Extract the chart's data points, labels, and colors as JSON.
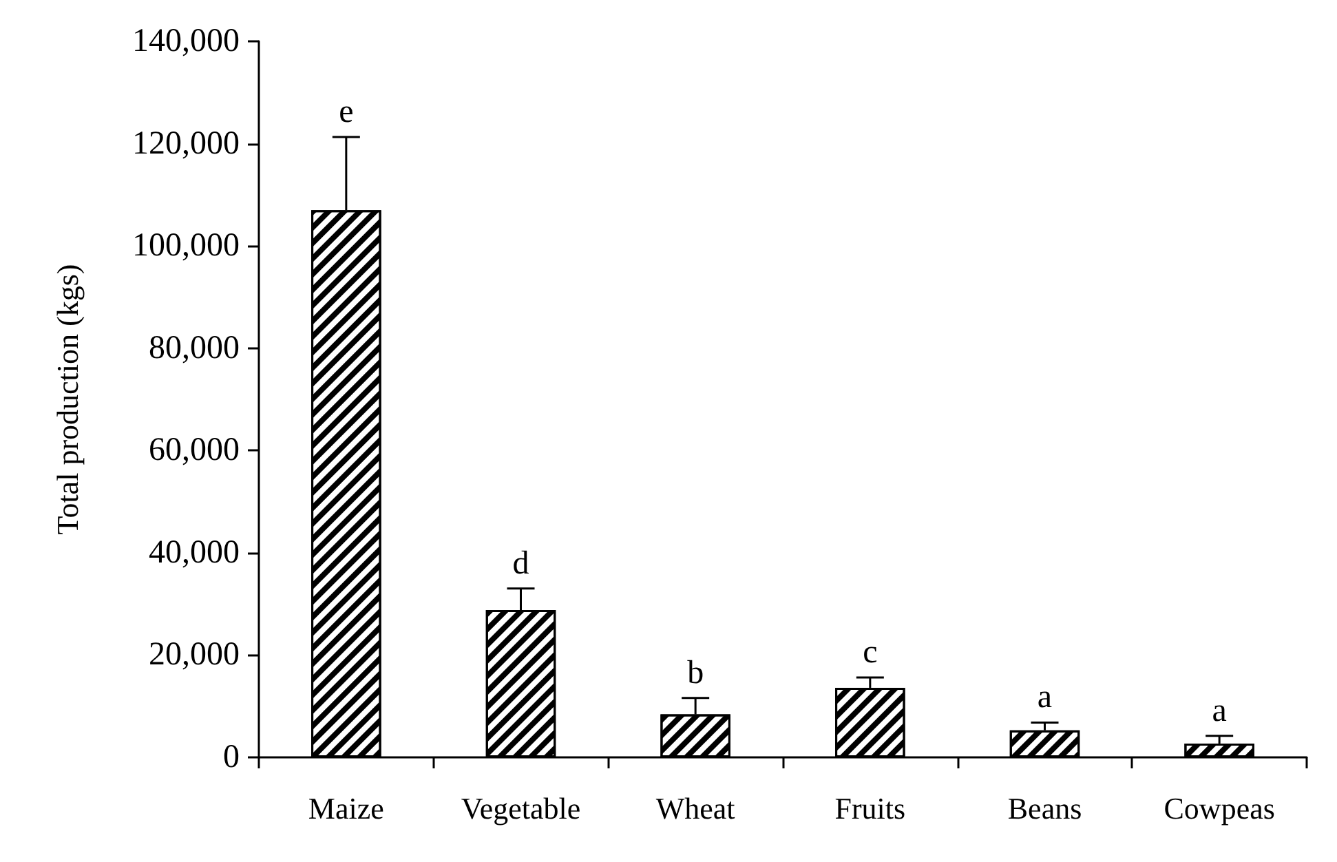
{
  "chart_data": {
    "type": "bar",
    "ylabel": "Total production (kgs)",
    "categories": [
      "Maize",
      "Vegetable",
      "Wheat",
      "Fruits",
      "Beans",
      "Cowpeas"
    ],
    "series": [
      {
        "color": "#000000",
        "values": [
          107000,
          28800,
          8400,
          13600,
          5300,
          2700
        ],
        "errors": [
          [
            107000,
            121300
          ],
          [
            28800,
            33000
          ],
          [
            8400,
            11600
          ],
          [
            13600,
            15600
          ],
          [
            5300,
            6800
          ],
          [
            2700,
            4200
          ]
        ]
      }
    ],
    "ylim": [
      0,
      140000
    ],
    "yticks": [
      0,
      {
        "value": 20000,
        "label": "20,000"
      },
      {
        "value": 40000,
        "label": "40,000"
      },
      {
        "value": 60000,
        "label": "60,000"
      },
      {
        "value": 80000,
        "label": "80,000"
      },
      {
        "value": 100000,
        "label": "100,000"
      },
      {
        "value": 120000,
        "label": "120,000"
      },
      {
        "value": 140000,
        "label": "140,000"
      }
    ],
    "grid": false,
    "annotations": [
      {
        "text": "e",
        "x": "Maize",
        "y": 121300
      },
      {
        "text": "d",
        "x": "Vegetable",
        "y": 33000
      },
      {
        "text": "b",
        "x": "Wheat",
        "y": 11600
      },
      {
        "text": "c",
        "x": "Fruits",
        "y": 15600
      },
      {
        "text": "a",
        "x": "Beans",
        "y": 6800
      },
      {
        "text": "a",
        "x": "Cowpeas",
        "y": 4200
      }
    ]
  }
}
